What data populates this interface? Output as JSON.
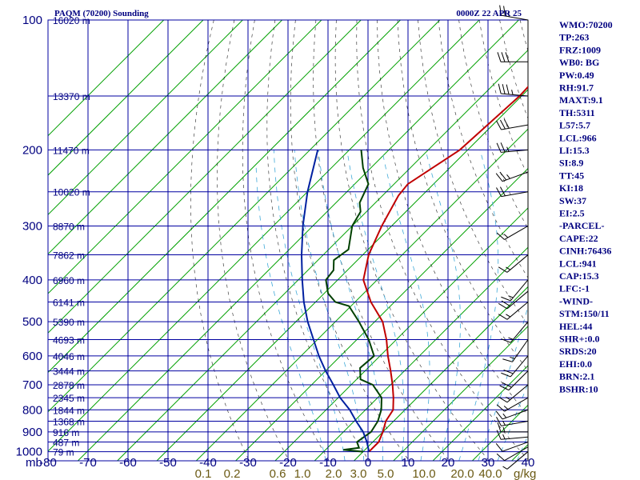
{
  "header": {
    "title": "PAQM (70200) Sounding",
    "time": "0000Z 22 APR 25"
  },
  "colors": {
    "grid": "#0000a0",
    "isotherm": "#00a000",
    "dry_adiabat": "#000000",
    "moist_adiabat": "#3fa9d8",
    "temperature": "#c00000",
    "dewpoint": "#004000",
    "parcel": "#0020a0",
    "label_blue": "#000080",
    "label_mixing": "#6b5a14"
  },
  "chart_data": {
    "type": "line",
    "subtype": "skew-t log-p sounding",
    "y_axis_unit_label": "mb",
    "x_axis_unit_label": "g/kg",
    "pressure_ticks": [
      "100",
      "200",
      "300",
      "400",
      "500",
      "600",
      "700",
      "800",
      "900",
      "1000"
    ],
    "height_labels": [
      {
        "p": 100,
        "label": "16020 m"
      },
      {
        "p": 150,
        "label": "13370 m"
      },
      {
        "p": 200,
        "label": "11470 m"
      },
      {
        "p": 250,
        "label": "10020 m"
      },
      {
        "p": 300,
        "label": "8870 m"
      },
      {
        "p": 350,
        "label": "7862 m"
      },
      {
        "p": 400,
        "label": "6960 m"
      },
      {
        "p": 450,
        "label": "6141 m"
      },
      {
        "p": 500,
        "label": "5390 m"
      },
      {
        "p": 550,
        "label": "4693 m"
      },
      {
        "p": 600,
        "label": "4046 m"
      },
      {
        "p": 650,
        "label": "3444 m"
      },
      {
        "p": 700,
        "label": "2878 m"
      },
      {
        "p": 750,
        "label": "2345 m"
      },
      {
        "p": 800,
        "label": "1844 m"
      },
      {
        "p": 850,
        "label": "1368 m"
      },
      {
        "p": 900,
        "label": "916 m"
      },
      {
        "p": 950,
        "label": "487 m"
      },
      {
        "p": 1000,
        "label": "79 m"
      }
    ],
    "temperature_ticks": [
      "-80",
      "-70",
      "-60",
      "-50",
      "-40",
      "-30",
      "-20",
      "-10",
      "0",
      "10",
      "20",
      "30",
      "40"
    ],
    "mixing_ratio_ticks": [
      "0.1",
      "0.2",
      "0.6",
      "1.0",
      "2.0",
      "3.0",
      "5.0",
      "10.0",
      "20.0",
      "40.0"
    ],
    "series": [
      {
        "key": "temperature",
        "points": [
          [
            100,
            -52
          ],
          [
            150,
            -50.5
          ],
          [
            200,
            -52
          ],
          [
            240,
            -56.5
          ],
          [
            255,
            -56
          ],
          [
            300,
            -52.5
          ],
          [
            350,
            -48.5
          ],
          [
            400,
            -43.5
          ],
          [
            450,
            -36
          ],
          [
            500,
            -28
          ],
          [
            550,
            -22.5
          ],
          [
            600,
            -18
          ],
          [
            650,
            -13.5
          ],
          [
            700,
            -9.5
          ],
          [
            750,
            -6
          ],
          [
            800,
            -3
          ],
          [
            850,
            -2
          ],
          [
            900,
            0
          ],
          [
            950,
            1.5
          ],
          [
            1000,
            1.5
          ]
        ]
      },
      {
        "key": "dewpoint",
        "points": [
          [
            200,
            -77
          ],
          [
            220,
            -72
          ],
          [
            240,
            -66.5
          ],
          [
            265,
            -64
          ],
          [
            278,
            -61.5
          ],
          [
            300,
            -60
          ],
          [
            340,
            -55
          ],
          [
            360,
            -56
          ],
          [
            380,
            -53.5
          ],
          [
            400,
            -53
          ],
          [
            430,
            -49
          ],
          [
            450,
            -45
          ],
          [
            460,
            -40.5
          ],
          [
            500,
            -34
          ],
          [
            550,
            -27
          ],
          [
            600,
            -21.5
          ],
          [
            640,
            -22
          ],
          [
            680,
            -19
          ],
          [
            700,
            -14.5
          ],
          [
            750,
            -9
          ],
          [
            800,
            -6
          ],
          [
            850,
            -4
          ],
          [
            900,
            -3
          ],
          [
            950,
            -4
          ],
          [
            980,
            -2
          ],
          [
            990,
            -5.5
          ],
          [
            1000,
            0
          ]
        ]
      },
      {
        "key": "parcel",
        "points": [
          [
            200,
            -88
          ],
          [
            250,
            -80
          ],
          [
            300,
            -72.5
          ],
          [
            350,
            -65.5
          ],
          [
            400,
            -59
          ],
          [
            450,
            -53
          ],
          [
            500,
            -47
          ],
          [
            550,
            -41
          ],
          [
            600,
            -35.5
          ],
          [
            650,
            -30
          ],
          [
            700,
            -24.5
          ],
          [
            750,
            -19.5
          ],
          [
            800,
            -14
          ],
          [
            850,
            -9.5
          ],
          [
            900,
            -5
          ],
          [
            950,
            -1.5
          ],
          [
            1000,
            1.5
          ]
        ]
      }
    ],
    "wind_barbs": [
      {
        "p": 100,
        "dir": 280,
        "kt": 25
      },
      {
        "p": 125,
        "dir": 270,
        "kt": 30
      },
      {
        "p": 150,
        "dir": 275,
        "kt": 35
      },
      {
        "p": 175,
        "dir": 260,
        "kt": 30
      },
      {
        "p": 200,
        "dir": 265,
        "kt": 25
      },
      {
        "p": 225,
        "dir": 250,
        "kt": 25
      },
      {
        "p": 250,
        "dir": 260,
        "kt": 20
      },
      {
        "p": 300,
        "dir": 240,
        "kt": 15
      },
      {
        "p": 350,
        "dir": 230,
        "kt": 15
      },
      {
        "p": 400,
        "dir": 220,
        "kt": 15
      },
      {
        "p": 425,
        "dir": 230,
        "kt": 20
      },
      {
        "p": 450,
        "dir": 230,
        "kt": 15
      },
      {
        "p": 500,
        "dir": 220,
        "kt": 15
      },
      {
        "p": 550,
        "dir": 215,
        "kt": 15
      },
      {
        "p": 600,
        "dir": 220,
        "kt": 20
      },
      {
        "p": 650,
        "dir": 225,
        "kt": 20
      },
      {
        "p": 700,
        "dir": 230,
        "kt": 15
      },
      {
        "p": 750,
        "dir": 240,
        "kt": 15
      },
      {
        "p": 800,
        "dir": 250,
        "kt": 15
      },
      {
        "p": 850,
        "dir": 260,
        "kt": 15
      },
      {
        "p": 900,
        "dir": 270,
        "kt": 15
      },
      {
        "p": 925,
        "dir": 265,
        "kt": 15
      },
      {
        "p": 950,
        "dir": 250,
        "kt": 10
      },
      {
        "p": 975,
        "dir": 240,
        "kt": 10
      },
      {
        "p": 1000,
        "dir": 230,
        "kt": 5
      }
    ],
    "ylim": [
      100,
      1050
    ],
    "xlim": [
      -80,
      40
    ],
    "grid": true
  },
  "indices": [
    "WMO:70200",
    "TP:263",
    "FRZ:1009",
    "WB0: BG",
    "PW:0.49",
    "RH:91.7",
    "MAXT:9.1",
    "TH:5311",
    "L57:5.7",
    "LCL:966",
    "LI:15.3",
    "SI:8.9",
    "TT:45",
    "KI:18",
    "SW:37",
    "EI:2.5",
    "-PARCEL-",
    "CAPE:22",
    "CINH:76436",
    "LCL:941",
    "CAP:15.3",
    "LFC:-1",
    "-WIND-",
    "STM:150/11",
    "HEL:44",
    "SHR+:0.0",
    "SRDS:20",
    "EHI:0.0",
    "BRN:2.1",
    "BSHR:10"
  ]
}
